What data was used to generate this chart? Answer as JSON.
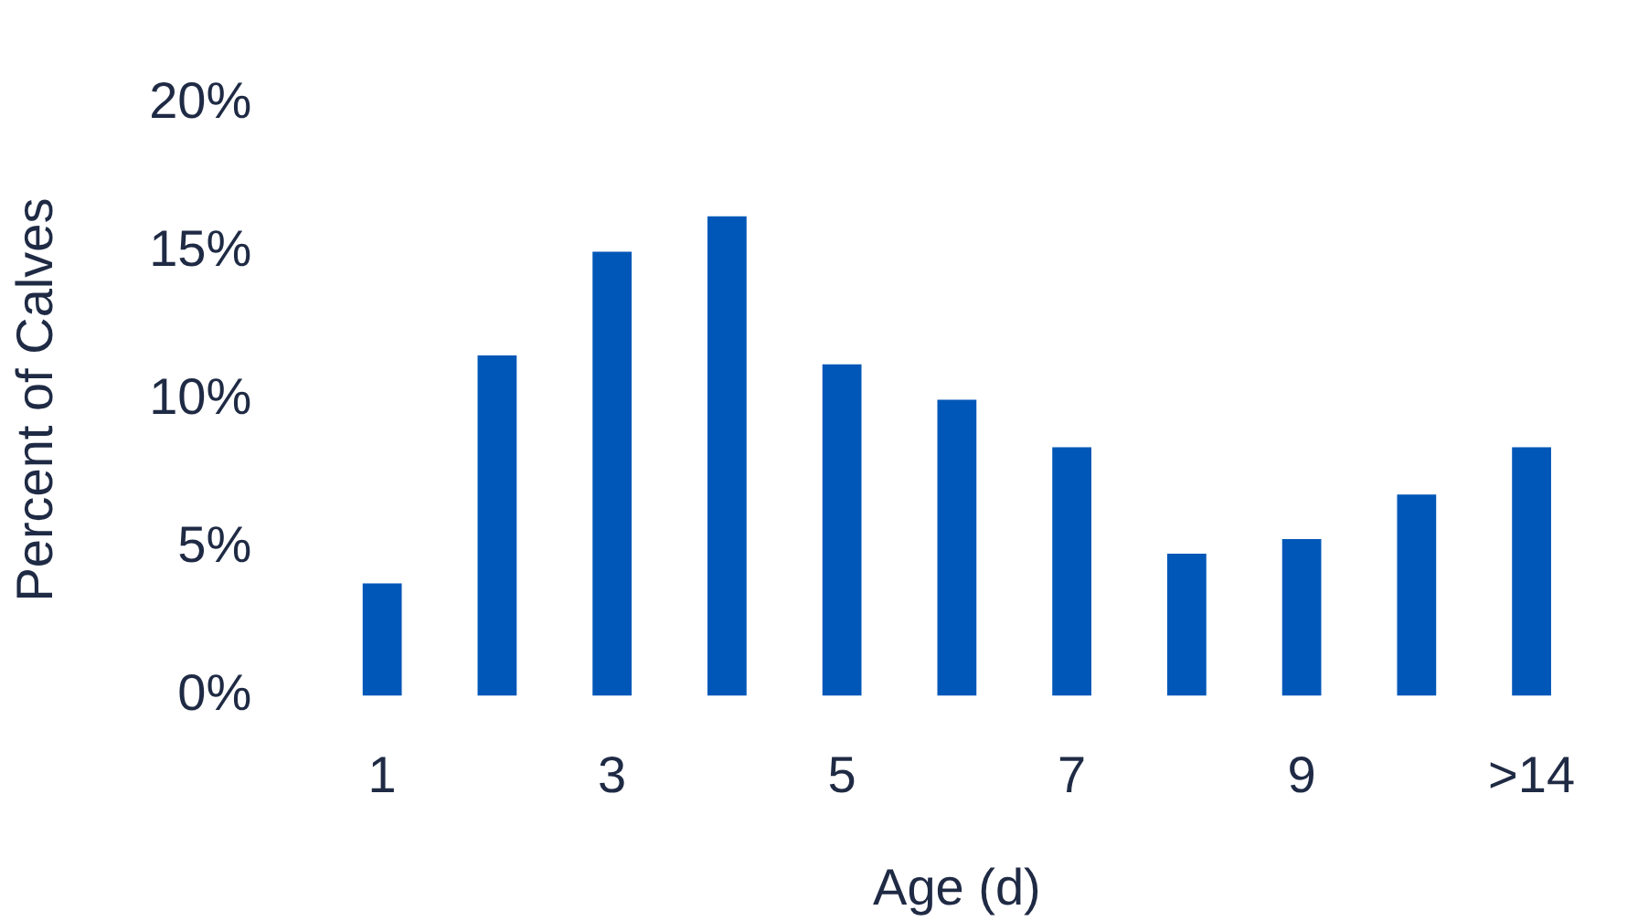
{
  "chart_data": {
    "type": "bar",
    "xlabel": "Age (d)",
    "ylabel": "Percent of Calves",
    "categories": [
      "1",
      null,
      "3",
      null,
      "5",
      null,
      "7",
      null,
      "9",
      null,
      ">14"
    ],
    "values": [
      3.8,
      11.5,
      15.0,
      16.2,
      11.2,
      10.0,
      8.4,
      4.8,
      5.3,
      6.8,
      8.4
    ],
    "color": "#0057b8",
    "ylim": [
      0,
      20
    ],
    "yticks": [
      {
        "value": 0,
        "label": "0%"
      },
      {
        "value": 5,
        "label": "5%"
      },
      {
        "value": 10,
        "label": "10%"
      },
      {
        "value": 15,
        "label": "15%"
      },
      {
        "value": 20,
        "label": "20%"
      }
    ],
    "grid": false,
    "legend": false
  }
}
